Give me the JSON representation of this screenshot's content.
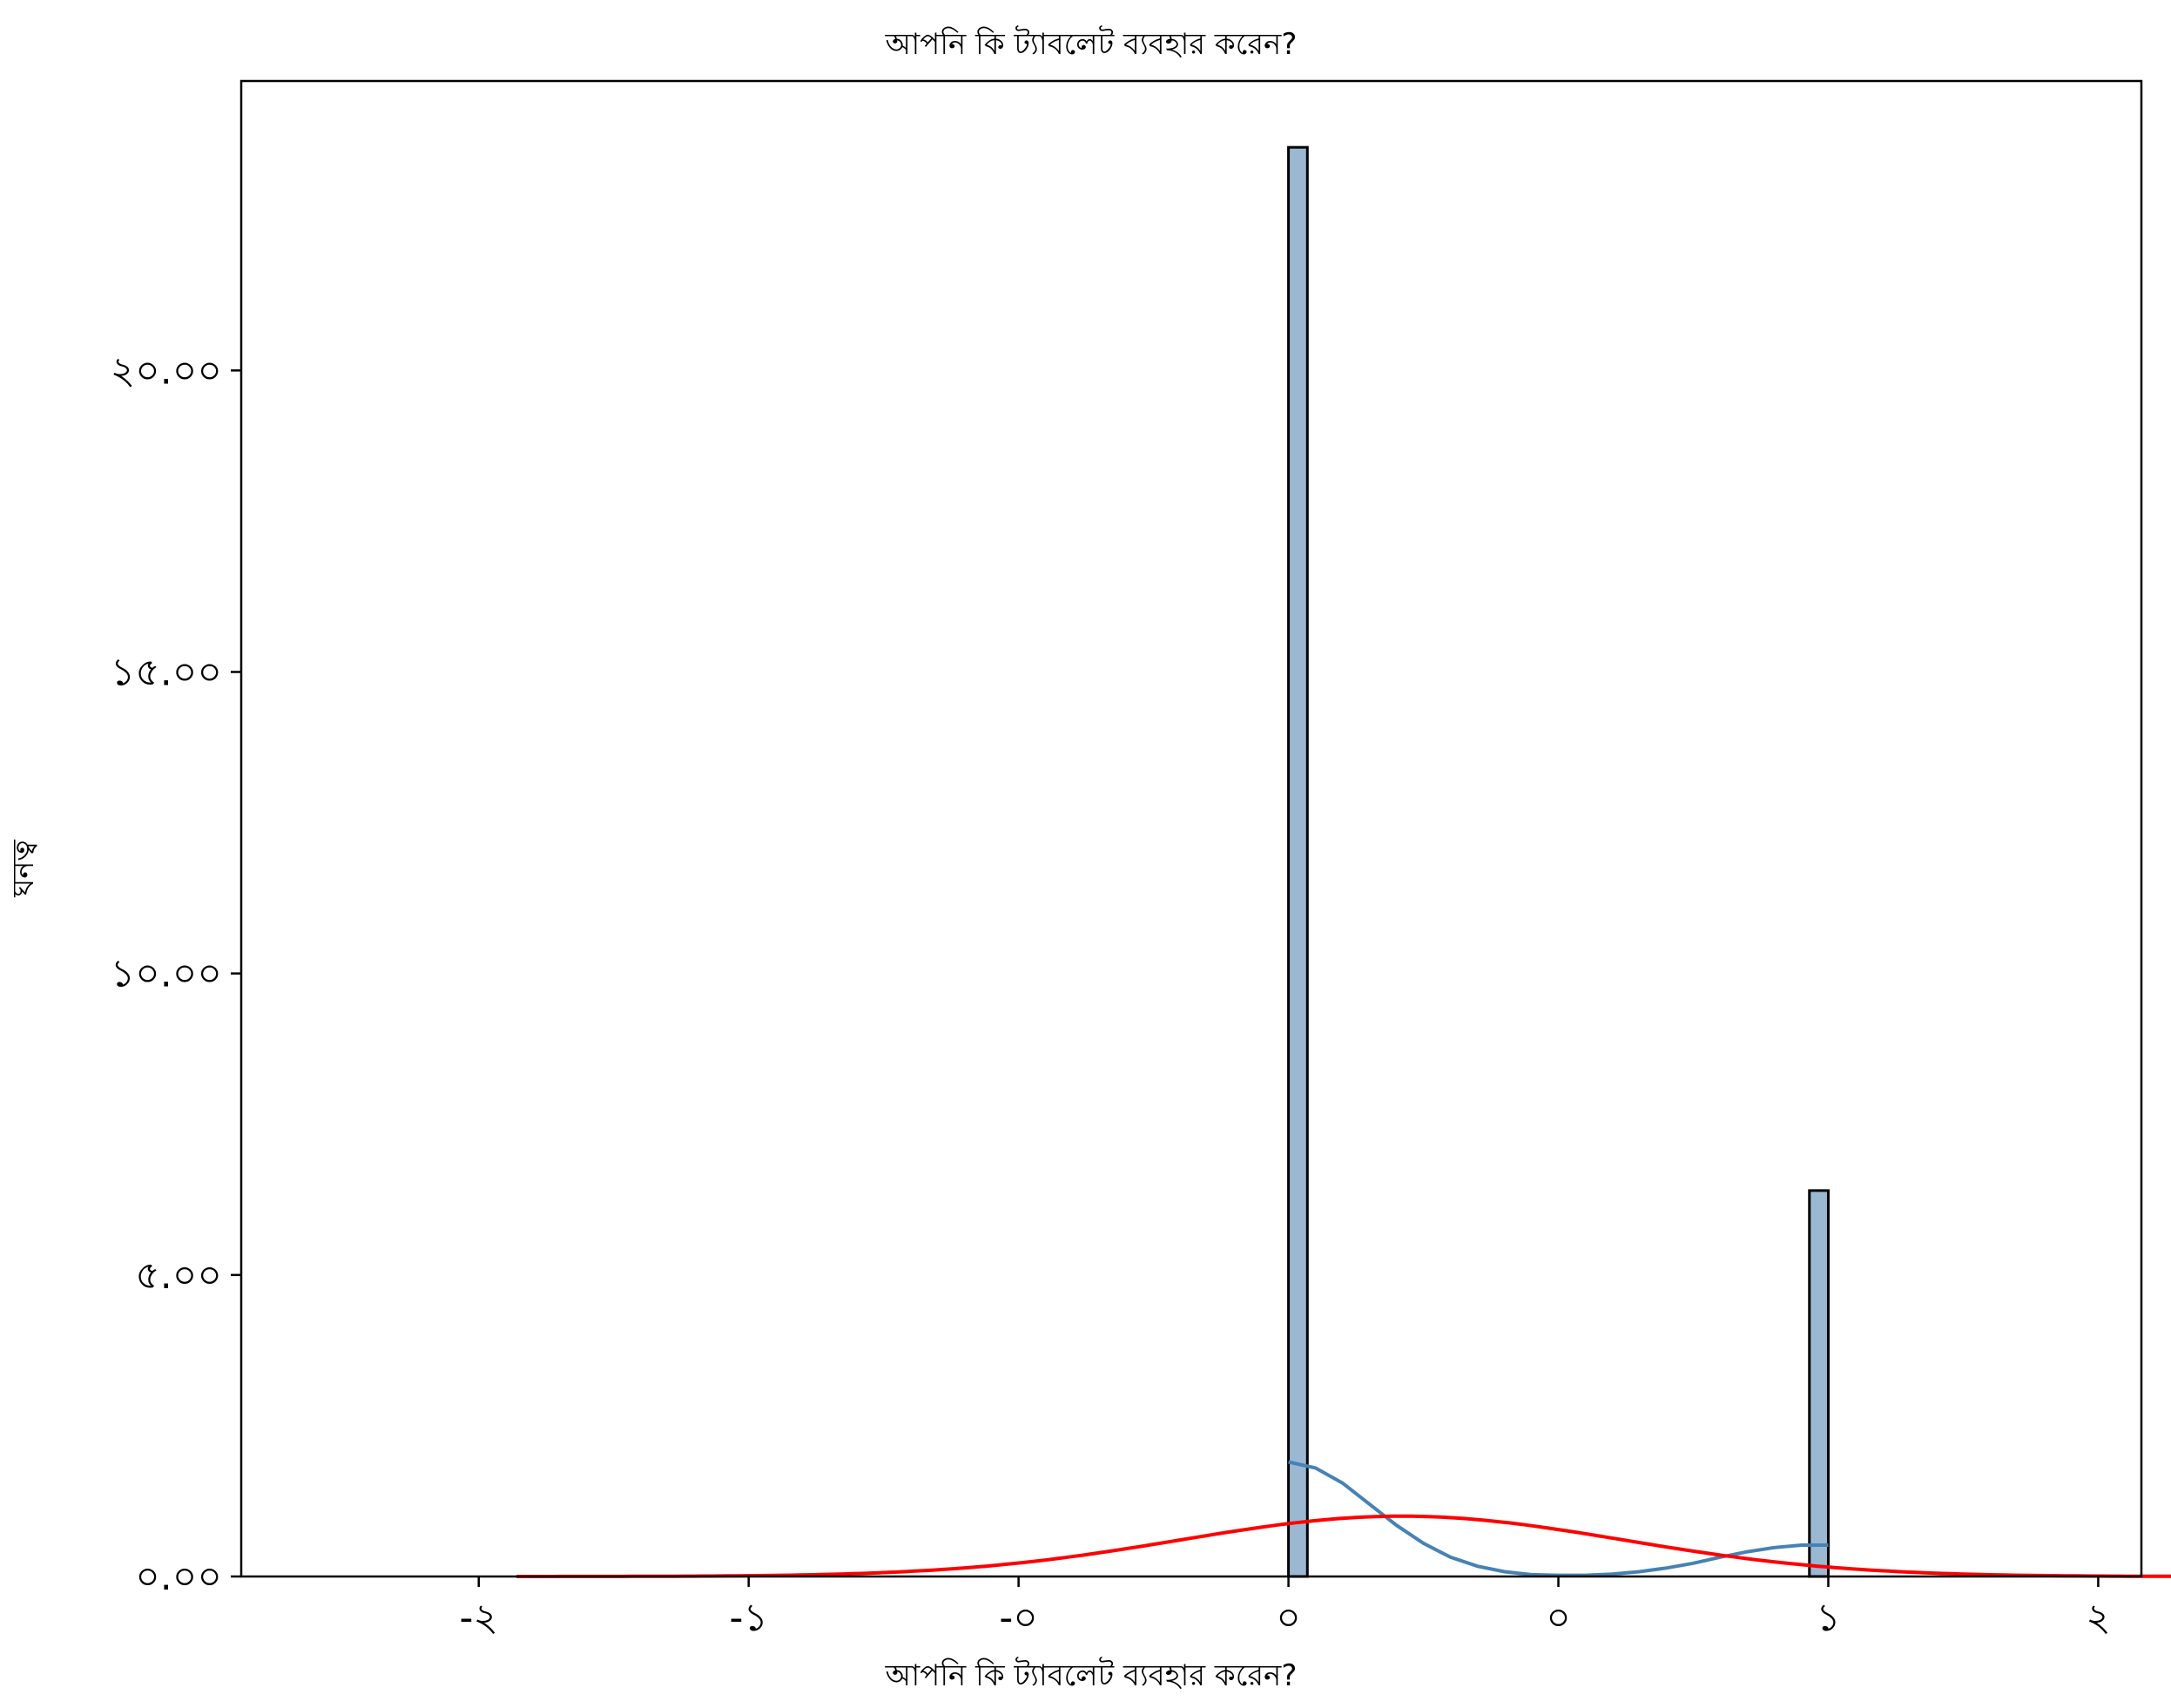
{
  "chart_data": {
    "type": "bar",
    "title": "আপনি কি ট্যাবলেট ব্যবহার করেন?",
    "xlabel": "আপনি কি ট্যাবলেট ব্যবহার করেন?",
    "ylabel": "ঘনত্ব",
    "xlim": [
      -1.94,
      1.58
    ],
    "ylim": [
      0,
      24.8
    ],
    "x_ticks": [
      {
        "value": -1.5,
        "label": "-২"
      },
      {
        "value": -1.0,
        "label": "-১"
      },
      {
        "value": -0.5,
        "label": "-০"
      },
      {
        "value": 0.0,
        "label": "০"
      },
      {
        "value": 0.5,
        "label": "০"
      },
      {
        "value": 1.0,
        "label": "১"
      },
      {
        "value": 1.5,
        "label": "২"
      },
      {
        "value": 2.0,
        "label": "২"
      }
    ],
    "y_ticks": [
      {
        "value": 0,
        "label": "০.০০"
      },
      {
        "value": 5,
        "label": "৫.০০"
      },
      {
        "value": 10,
        "label": "১০.০০"
      },
      {
        "value": 15,
        "label": "১৫.০০"
      },
      {
        "value": 20,
        "label": "২০.০০"
      }
    ],
    "bars": [
      {
        "x0": 0.0,
        "x1": 0.035,
        "value": 23.7
      },
      {
        "x0": 0.965,
        "x1": 1.0,
        "value": 6.4
      }
    ],
    "kde_curve": {
      "color": "#4682B4",
      "points": [
        [
          0.0,
          1.9
        ],
        [
          0.05,
          1.8
        ],
        [
          0.1,
          1.55
        ],
        [
          0.15,
          1.2
        ],
        [
          0.2,
          0.85
        ],
        [
          0.25,
          0.55
        ],
        [
          0.3,
          0.32
        ],
        [
          0.35,
          0.17
        ],
        [
          0.4,
          0.08
        ],
        [
          0.45,
          0.03
        ],
        [
          0.5,
          0.02
        ],
        [
          0.55,
          0.02
        ],
        [
          0.6,
          0.04
        ],
        [
          0.65,
          0.08
        ],
        [
          0.7,
          0.14
        ],
        [
          0.75,
          0.22
        ],
        [
          0.8,
          0.32
        ],
        [
          0.85,
          0.41
        ],
        [
          0.9,
          0.48
        ],
        [
          0.95,
          0.52
        ],
        [
          1.0,
          0.52
        ]
      ]
    },
    "normal_curve": {
      "color": "#ff0000",
      "mean": 0.21,
      "std": 0.41,
      "peak": 1.0,
      "x_range": [
        -1.43,
        1.85
      ]
    },
    "colors": {
      "bar_fill": "#9bb8d3",
      "bar_edge": "#000000",
      "axis": "#000000"
    }
  }
}
